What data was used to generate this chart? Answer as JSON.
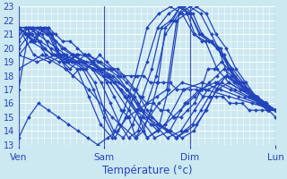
{
  "background_color": "#cce8f0",
  "grid_color": "#ffffff",
  "line_color": "#2244bb",
  "marker": "D",
  "markersize": 2.0,
  "linewidth": 0.9,
  "ylim": [
    13,
    23
  ],
  "yticks": [
    13,
    14,
    15,
    16,
    17,
    18,
    19,
    20,
    21,
    22,
    23
  ],
  "xlim": [
    0,
    1.0
  ],
  "day_positions": [
    0.0,
    0.333,
    0.667,
    1.0
  ],
  "day_labels": [
    "Ven",
    "Sam",
    "Dim",
    "Lun"
  ],
  "xlabel": "Température (°c)",
  "series": [
    [
      21.5,
      21.5,
      21.0,
      20.5,
      20.0,
      19.5,
      19.5,
      19.5,
      19.0,
      19.0,
      19.0,
      19.0,
      18.5,
      18.5,
      18.5,
      18.5,
      18.0,
      18.0,
      18.0,
      18.0,
      17.5,
      17.5,
      17.5,
      17.5,
      17.0,
      17.0,
      17.0,
      17.0,
      16.5,
      16.5,
      16.5,
      16.5,
      16.0,
      16.0,
      16.0,
      15.5,
      15.5,
      15.5,
      15.5,
      15.0
    ],
    [
      21.5,
      21.0,
      20.5,
      21.0,
      21.5,
      21.0,
      19.5,
      18.5,
      18.0,
      18.5,
      18.5,
      19.0,
      19.5,
      19.0,
      18.5,
      18.0,
      17.5,
      17.0,
      16.5,
      16.0,
      16.0,
      15.5,
      15.5,
      15.0,
      15.0,
      15.5,
      16.0,
      17.0,
      18.5,
      18.5,
      19.0,
      18.5,
      18.0,
      17.5,
      17.0,
      16.5,
      16.0,
      15.5,
      15.5
    ],
    [
      21.5,
      21.0,
      20.5,
      21.5,
      21.5,
      20.0,
      19.0,
      18.5,
      19.0,
      19.5,
      19.0,
      18.5,
      18.0,
      17.5,
      17.0,
      16.5,
      15.5,
      15.0,
      14.5,
      14.0,
      14.5,
      15.0,
      15.5,
      16.0,
      16.5,
      17.0,
      17.5,
      18.0,
      18.5,
      18.0,
      17.5,
      17.0,
      16.5,
      16.0,
      15.5,
      15.5
    ],
    [
      21.5,
      21.0,
      20.5,
      21.5,
      21.0,
      19.5,
      19.0,
      19.5,
      19.5,
      19.0,
      18.5,
      18.0,
      17.5,
      17.0,
      16.5,
      15.5,
      15.0,
      14.5,
      14.0,
      13.5,
      14.0,
      14.5,
      15.5,
      16.5,
      17.5,
      18.0,
      17.5,
      17.0,
      16.5,
      16.0,
      15.5,
      15.5
    ],
    [
      21.5,
      21.0,
      21.5,
      21.0,
      19.5,
      19.0,
      19.5,
      19.5,
      19.0,
      18.5,
      18.0,
      17.0,
      16.0,
      15.0,
      14.5,
      14.0,
      13.5,
      14.0,
      14.5,
      15.5,
      17.0,
      18.0,
      17.5,
      17.0,
      16.5,
      16.0,
      15.5
    ],
    [
      21.5,
      21.5,
      21.0,
      19.5,
      19.0,
      19.5,
      19.5,
      19.0,
      18.5,
      18.0,
      17.0,
      15.5,
      14.5,
      14.0,
      13.5,
      14.0,
      15.5,
      17.0,
      17.5,
      17.0,
      16.5,
      16.0,
      15.5
    ],
    [
      21.5,
      21.5,
      19.5,
      19.0,
      19.5,
      19.0,
      18.5,
      18.0,
      17.0,
      15.5,
      14.5,
      13.5,
      14.0,
      15.5,
      17.0,
      17.5,
      17.0,
      16.5,
      16.0,
      15.5
    ],
    [
      21.5,
      19.5,
      19.0,
      19.5,
      19.0,
      18.5,
      18.0,
      16.5,
      15.0,
      13.5,
      14.0,
      16.0,
      17.0,
      17.5,
      17.0,
      16.5,
      16.0,
      15.5
    ],
    [
      19.5,
      19.0,
      19.5,
      19.0,
      18.5,
      17.5,
      15.5,
      13.5,
      14.5,
      17.0,
      17.5,
      17.0,
      16.5,
      16.0,
      15.5
    ],
    [
      18.5,
      19.5,
      18.5,
      17.0,
      15.0,
      13.5,
      16.0,
      17.5,
      17.0,
      16.5,
      16.0,
      15.5
    ],
    [
      21.5,
      21.5,
      21.5,
      21.5,
      21.5,
      21.0,
      20.5,
      20.5,
      20.0,
      19.5,
      19.0,
      18.5,
      17.5,
      16.5,
      15.5,
      15.0,
      13.5,
      14.0,
      15.5,
      17.5,
      21.5,
      22.0,
      23.0,
      22.5,
      21.0,
      20.5,
      20.5,
      20.0,
      19.5,
      18.5,
      17.5,
      17.0,
      16.5,
      16.0,
      15.5,
      15.5
    ],
    [
      21.0,
      21.5,
      21.5,
      21.0,
      20.5,
      20.0,
      19.5,
      19.0,
      18.5,
      17.5,
      16.0,
      14.5,
      13.5,
      14.0,
      16.0,
      18.0,
      21.0,
      22.0,
      23.0,
      22.5,
      21.0,
      20.5,
      20.0,
      18.5,
      17.5,
      17.0,
      16.5,
      16.0,
      15.5
    ],
    [
      20.5,
      21.5,
      21.0,
      20.5,
      20.0,
      19.5,
      19.0,
      18.5,
      17.5,
      15.5,
      14.0,
      13.5,
      14.5,
      16.5,
      18.5,
      21.5,
      22.0,
      23.0,
      22.5,
      21.0,
      20.5,
      20.0,
      18.0,
      17.5,
      17.0,
      16.5,
      16.0,
      15.5
    ],
    [
      20.0,
      21.0,
      20.5,
      20.0,
      19.5,
      19.0,
      18.5,
      17.0,
      15.0,
      13.5,
      15.0,
      17.0,
      19.0,
      21.5,
      22.5,
      23.0,
      22.5,
      21.0,
      20.5,
      19.5,
      18.0,
      17.0,
      16.5,
      16.0,
      15.5
    ],
    [
      19.5,
      20.5,
      20.0,
      19.5,
      19.0,
      18.5,
      16.5,
      14.5,
      13.5,
      15.5,
      18.0,
      21.5,
      22.5,
      23.0,
      22.5,
      21.0,
      20.5,
      18.5,
      17.5,
      17.0,
      16.5,
      16.0,
      15.5
    ],
    [
      13.5,
      15.0,
      16.0,
      15.5,
      15.0,
      14.5,
      14.0,
      13.5,
      13.0,
      13.5,
      14.0,
      15.0,
      15.5,
      16.0,
      16.5,
      17.0,
      22.0,
      22.5,
      23.0,
      22.5,
      21.0,
      20.0,
      18.5,
      17.5,
      16.5,
      16.0,
      15.5
    ],
    [
      17.0,
      21.5,
      21.5,
      21.0,
      20.0,
      19.5,
      19.0,
      18.5,
      18.0,
      17.5,
      16.5,
      15.5,
      13.5,
      14.0,
      17.0,
      22.5,
      23.0,
      22.5,
      21.0,
      19.5,
      18.5,
      17.5,
      16.5,
      16.0,
      15.5
    ]
  ]
}
